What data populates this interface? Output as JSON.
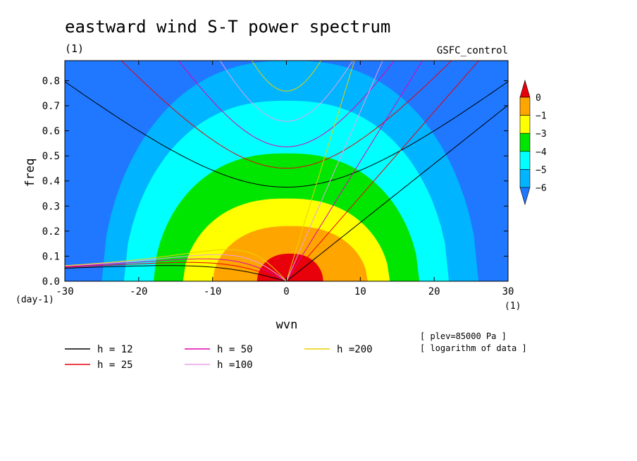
{
  "chart_data": {
    "type": "heatmap",
    "title": "eastward wind S-T power spectrum",
    "subtitle_left": "(1)",
    "subtitle_right": "GSFC_control",
    "xlabel": "wvn",
    "xunit": "(1)",
    "ylabel": "freq",
    "yunit": "(day-1)",
    "xlim": [
      -30,
      30
    ],
    "ylim": [
      0,
      0.88
    ],
    "xticks": [
      "-30",
      "-20",
      "-10",
      "0",
      "10",
      "20",
      "30"
    ],
    "xtick_values": [
      -30,
      -20,
      -10,
      0,
      10,
      20,
      30
    ],
    "yticks": [
      "0.0",
      "0.1",
      "0.2",
      "0.3",
      "0.4",
      "0.5",
      "0.6",
      "0.7",
      "0.8"
    ],
    "ytick_values": [
      0,
      0.1,
      0.2,
      0.3,
      0.4,
      0.5,
      0.6,
      0.7,
      0.8
    ],
    "annotations": [
      "[ plev=85000 Pa ]",
      "[ logarithm of data ]"
    ],
    "colorbar": {
      "labels": [
        "0",
        "−1",
        "−3",
        "−4",
        "−5",
        "−6"
      ],
      "colors": [
        "#e8000b",
        "#ffa500",
        "#ffff00",
        "#00e600",
        "#00ffff",
        "#00b4ff",
        "#1f78ff"
      ],
      "extend": "both"
    },
    "contour_fill_levels": [
      {
        "level": -6,
        "color": "#1f78ff",
        "region": "background"
      },
      {
        "level": -5,
        "color": "#00b4ff",
        "peak_freq": 0.88,
        "span_wvn": [
          -25,
          26
        ]
      },
      {
        "level": -4,
        "color": "#00ffff",
        "peak_freq": 0.72,
        "span_wvn": [
          -22,
          22
        ]
      },
      {
        "level": -3,
        "color": "#00e600",
        "peak_freq": 0.51,
        "span_wvn": [
          -18,
          18
        ]
      },
      {
        "level": -1,
        "color": "#ffff00",
        "peak_freq": 0.33,
        "span_wvn": [
          -14,
          14
        ]
      },
      {
        "level": 0,
        "color": "#ffa500",
        "peak_freq": 0.22,
        "span_wvn": [
          -10,
          11
        ]
      },
      {
        "level": 1,
        "color": "#e8000b",
        "peak_freq": 0.11,
        "span_wvn": [
          -4,
          5
        ]
      }
    ],
    "dispersion_curves": [
      {
        "label": "h = 12",
        "color": "#000000"
      },
      {
        "label": "h = 25",
        "color": "#e8000b"
      },
      {
        "label": "h = 50",
        "color": "#e000b4"
      },
      {
        "label": "h =100",
        "color": "#e8a0e8"
      },
      {
        "label": "h =200",
        "color": "#e8d200"
      }
    ],
    "legend_placement": "bottom-left"
  }
}
